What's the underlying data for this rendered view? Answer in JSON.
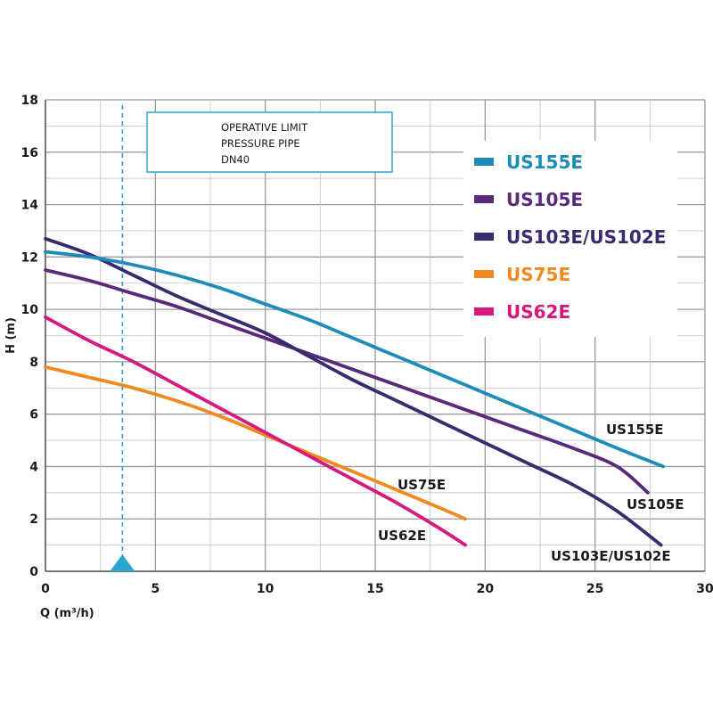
{
  "chart_data": {
    "type": "line",
    "xlabel": "Q (m³/h)",
    "ylabel": "H (m)",
    "xlim": [
      0,
      30
    ],
    "ylim": [
      0,
      18
    ],
    "xticks": [
      0,
      5,
      10,
      15,
      20,
      25,
      30
    ],
    "yticks": [
      0,
      2,
      4,
      6,
      8,
      10,
      12,
      14,
      16,
      18
    ],
    "grid": true,
    "legend_position": "top-right",
    "series": [
      {
        "name": "US155E",
        "color": "#1f8bb8",
        "label": "US155E",
        "x": [
          0,
          2,
          4,
          6,
          8,
          10,
          12,
          14,
          16,
          18,
          20,
          22,
          24,
          26,
          28.1
        ],
        "y": [
          12.2,
          12.0,
          11.7,
          11.3,
          10.8,
          10.2,
          9.6,
          8.9,
          8.2,
          7.5,
          6.8,
          6.1,
          5.4,
          4.7,
          4.0
        ]
      },
      {
        "name": "US105E",
        "color": "#5a2a7a",
        "label": "US105E",
        "x": [
          0,
          2,
          4,
          6,
          8,
          10,
          12,
          14,
          16,
          18,
          20,
          22,
          24,
          26,
          27.4
        ],
        "y": [
          11.5,
          11.1,
          10.6,
          10.1,
          9.5,
          8.9,
          8.3,
          7.7,
          7.1,
          6.5,
          5.9,
          5.3,
          4.7,
          4.0,
          3.0
        ]
      },
      {
        "name": "US103E/US102E",
        "color": "#3a2a6e",
        "label": "US103E/US102E",
        "x": [
          0,
          2,
          4,
          6,
          8,
          10,
          12,
          14,
          16,
          18,
          20,
          22,
          24,
          26,
          28.0
        ],
        "y": [
          12.7,
          12.1,
          11.3,
          10.5,
          9.8,
          9.1,
          8.2,
          7.3,
          6.5,
          5.7,
          4.9,
          4.1,
          3.3,
          2.3,
          1.0
        ]
      },
      {
        "name": "US75E",
        "color": "#f0891e",
        "label": "US75E",
        "x": [
          0,
          2,
          4,
          6,
          8,
          10,
          12,
          14,
          16,
          18,
          19.1
        ],
        "y": [
          7.8,
          7.4,
          7.0,
          6.5,
          5.9,
          5.2,
          4.5,
          3.8,
          3.1,
          2.4,
          2.0
        ]
      },
      {
        "name": "US62E",
        "color": "#d6197e",
        "label": "US62E",
        "x": [
          0,
          2,
          4,
          6,
          8,
          10,
          12,
          14,
          16,
          18,
          19.1
        ],
        "y": [
          9.7,
          8.8,
          8.0,
          7.1,
          6.2,
          5.3,
          4.4,
          3.5,
          2.6,
          1.6,
          1.0
        ]
      }
    ],
    "operative_limit": {
      "q": 3.5,
      "lines": [
        "OPERATIVE LIMIT",
        "PRESSURE PIPE",
        "DN40"
      ],
      "color": "#2aa6cf"
    }
  }
}
